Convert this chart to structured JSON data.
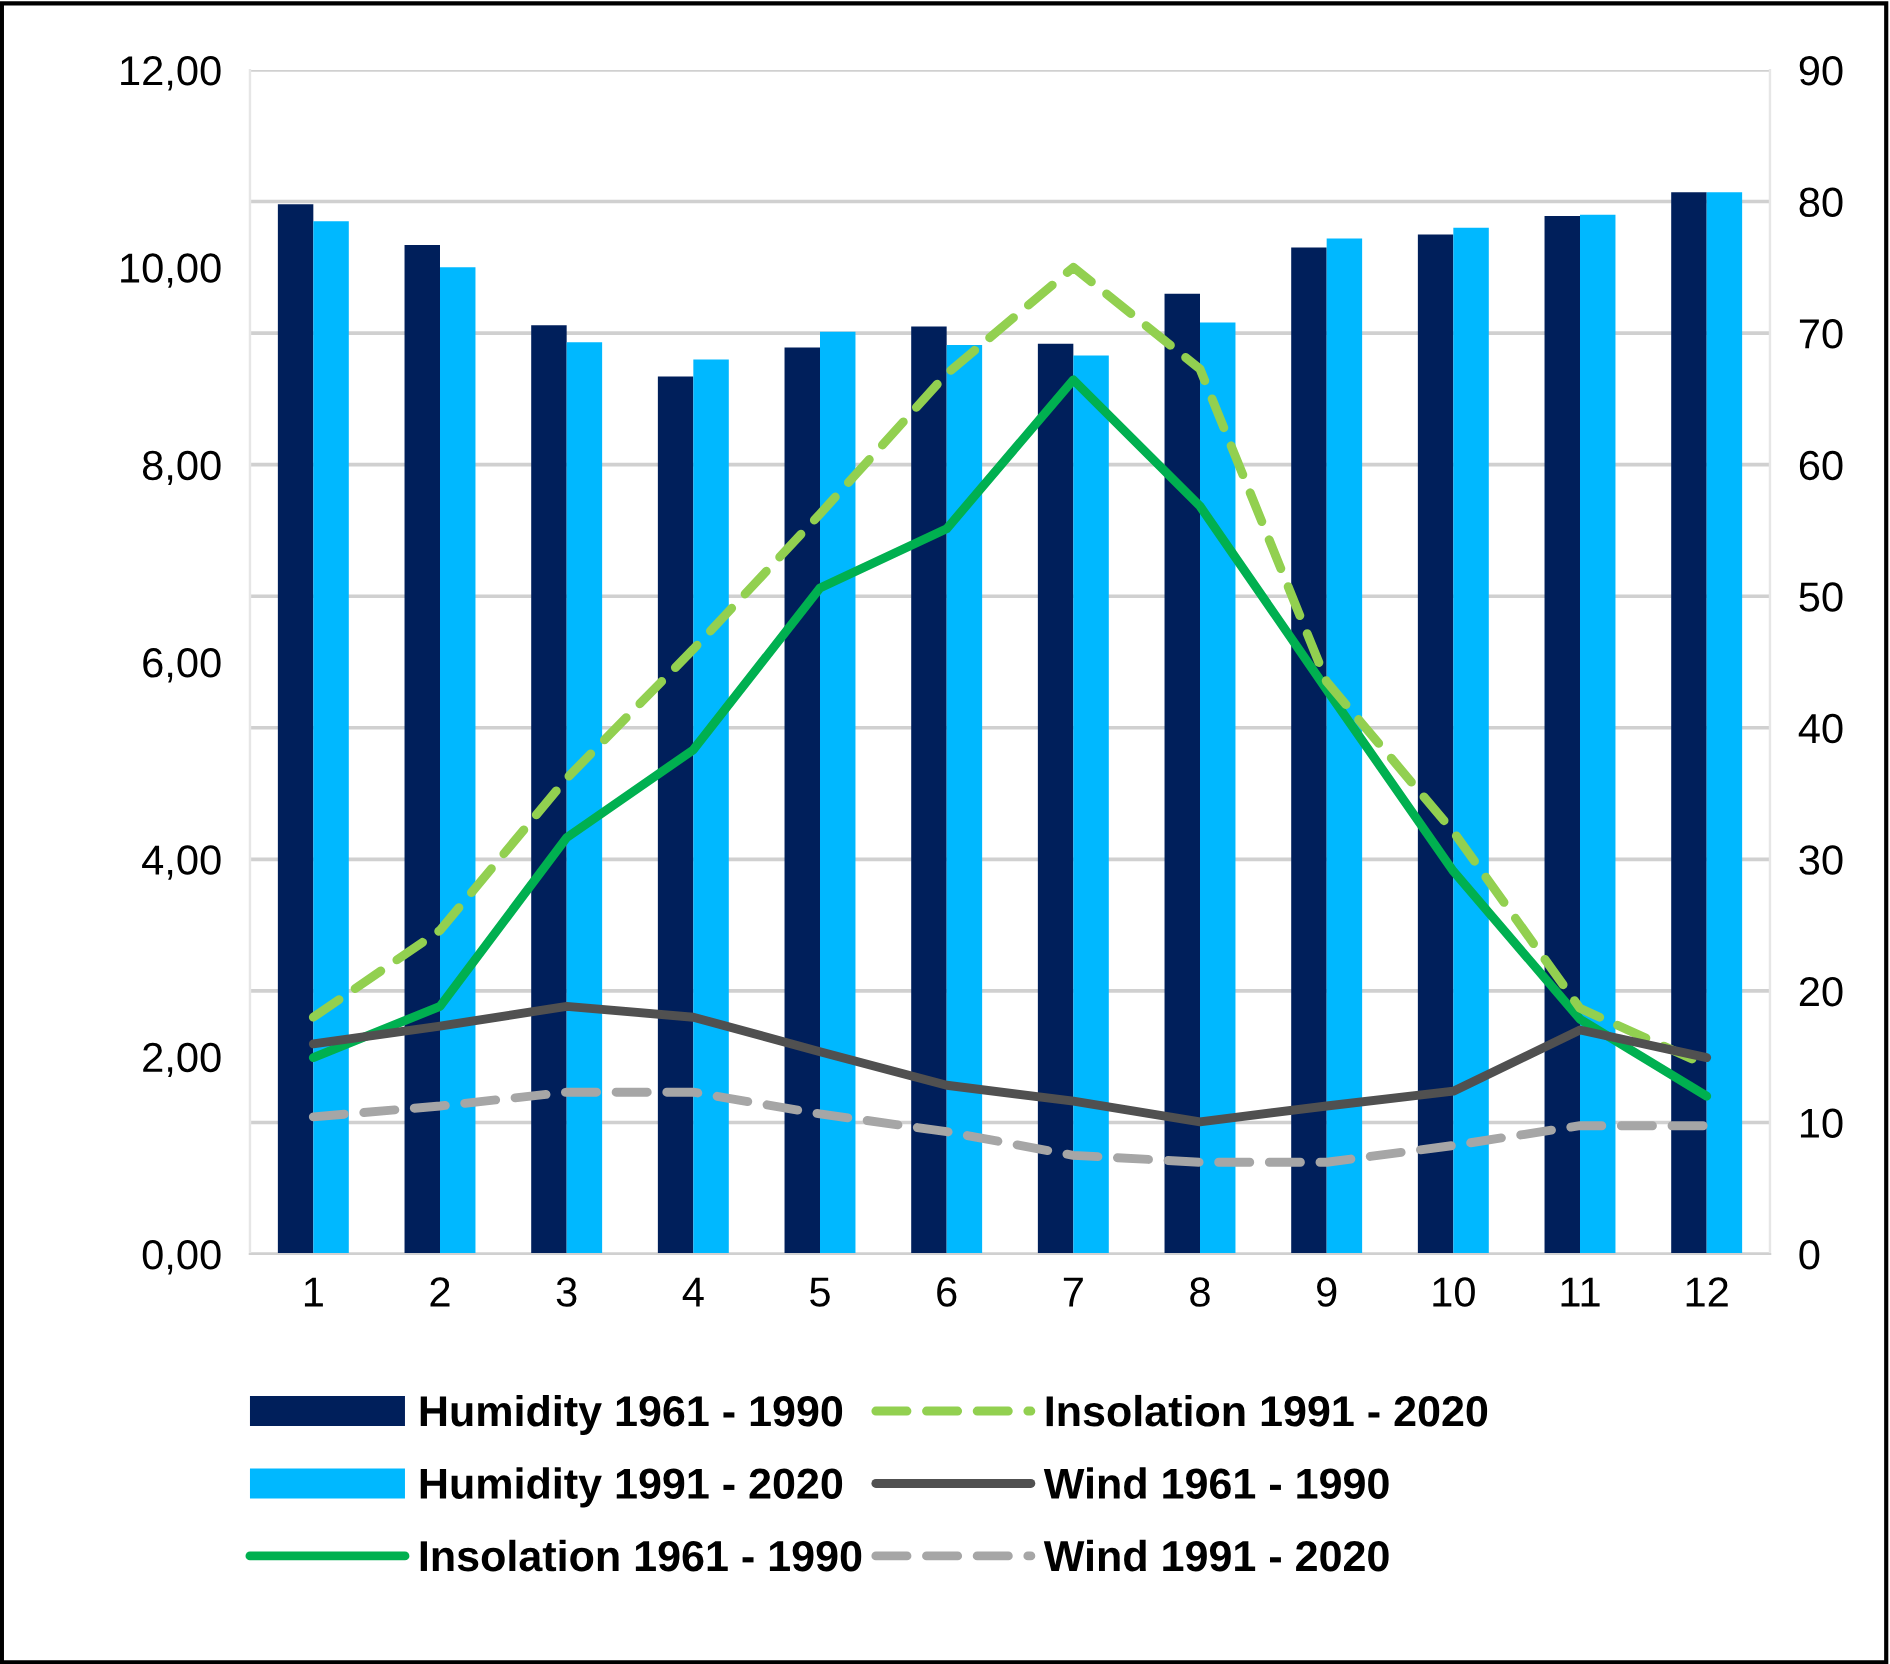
{
  "chart_data": {
    "type": "bar",
    "categories": [
      "1",
      "2",
      "3",
      "4",
      "5",
      "6",
      "7",
      "8",
      "9",
      "10",
      "11",
      "12"
    ],
    "series": [
      {
        "name": "Humidity 1961 - 1990",
        "color": "#001f5b",
        "axis": "y2",
        "values": [
          79.8,
          76.7,
          70.6,
          66.7,
          68.9,
          70.5,
          69.2,
          73.0,
          76.5,
          77.5,
          78.9,
          80.7
        ]
      },
      {
        "name": "Humidity 1991 - 2020",
        "color": "#00b8ff",
        "axis": "y2",
        "values": [
          78.5,
          75.0,
          69.3,
          68.0,
          70.1,
          69.1,
          68.3,
          70.8,
          77.2,
          78.0,
          79.0,
          80.7
        ]
      },
      {
        "name": "Insolation 1961 - 1990",
        "type": "line",
        "color": "#00b050",
        "line_style": "solid",
        "values": [
          1.99,
          2.51,
          4.22,
          5.11,
          6.75,
          7.35,
          8.86,
          7.58,
          5.72,
          3.88,
          2.38,
          1.6
        ]
      },
      {
        "name": "Insolation 1991 - 2020",
        "type": "line",
        "color": "#92d050",
        "line_style": "dashed",
        "values": [
          2.4,
          3.28,
          4.82,
          6.13,
          7.5,
          8.92,
          10.0,
          8.97,
          5.8,
          4.28,
          2.49,
          1.91
        ]
      },
      {
        "name": "Wind 1961 - 1990",
        "type": "line",
        "color": "#505050",
        "line_style": "solid",
        "values": [
          2.13,
          2.31,
          2.51,
          2.4,
          2.05,
          1.71,
          1.55,
          1.34,
          1.5,
          1.65,
          2.27,
          1.99
        ]
      },
      {
        "name": "Wind 1991 - 2020",
        "type": "line",
        "color": "#a6a6a6",
        "line_style": "dashed",
        "values": [
          1.39,
          1.5,
          1.64,
          1.64,
          1.42,
          1.24,
          1.0,
          0.93,
          0.93,
          1.1,
          1.3,
          1.3
        ]
      }
    ],
    "ylim": [
      0,
      12
    ],
    "yticks": [
      {
        "value": 0,
        "label": "0,00"
      },
      {
        "value": 2,
        "label": "2,00"
      },
      {
        "value": 4,
        "label": "4,00"
      },
      {
        "value": 6,
        "label": "6,00"
      },
      {
        "value": 8,
        "label": "8,00"
      },
      {
        "value": 10,
        "label": "10,00"
      },
      {
        "value": 12,
        "label": "12,00"
      }
    ],
    "y2lim": [
      0,
      90
    ],
    "y2ticks": [
      0,
      10,
      20,
      30,
      40,
      50,
      60,
      70,
      80,
      90
    ],
    "grid": "y",
    "legend": "bottom"
  }
}
